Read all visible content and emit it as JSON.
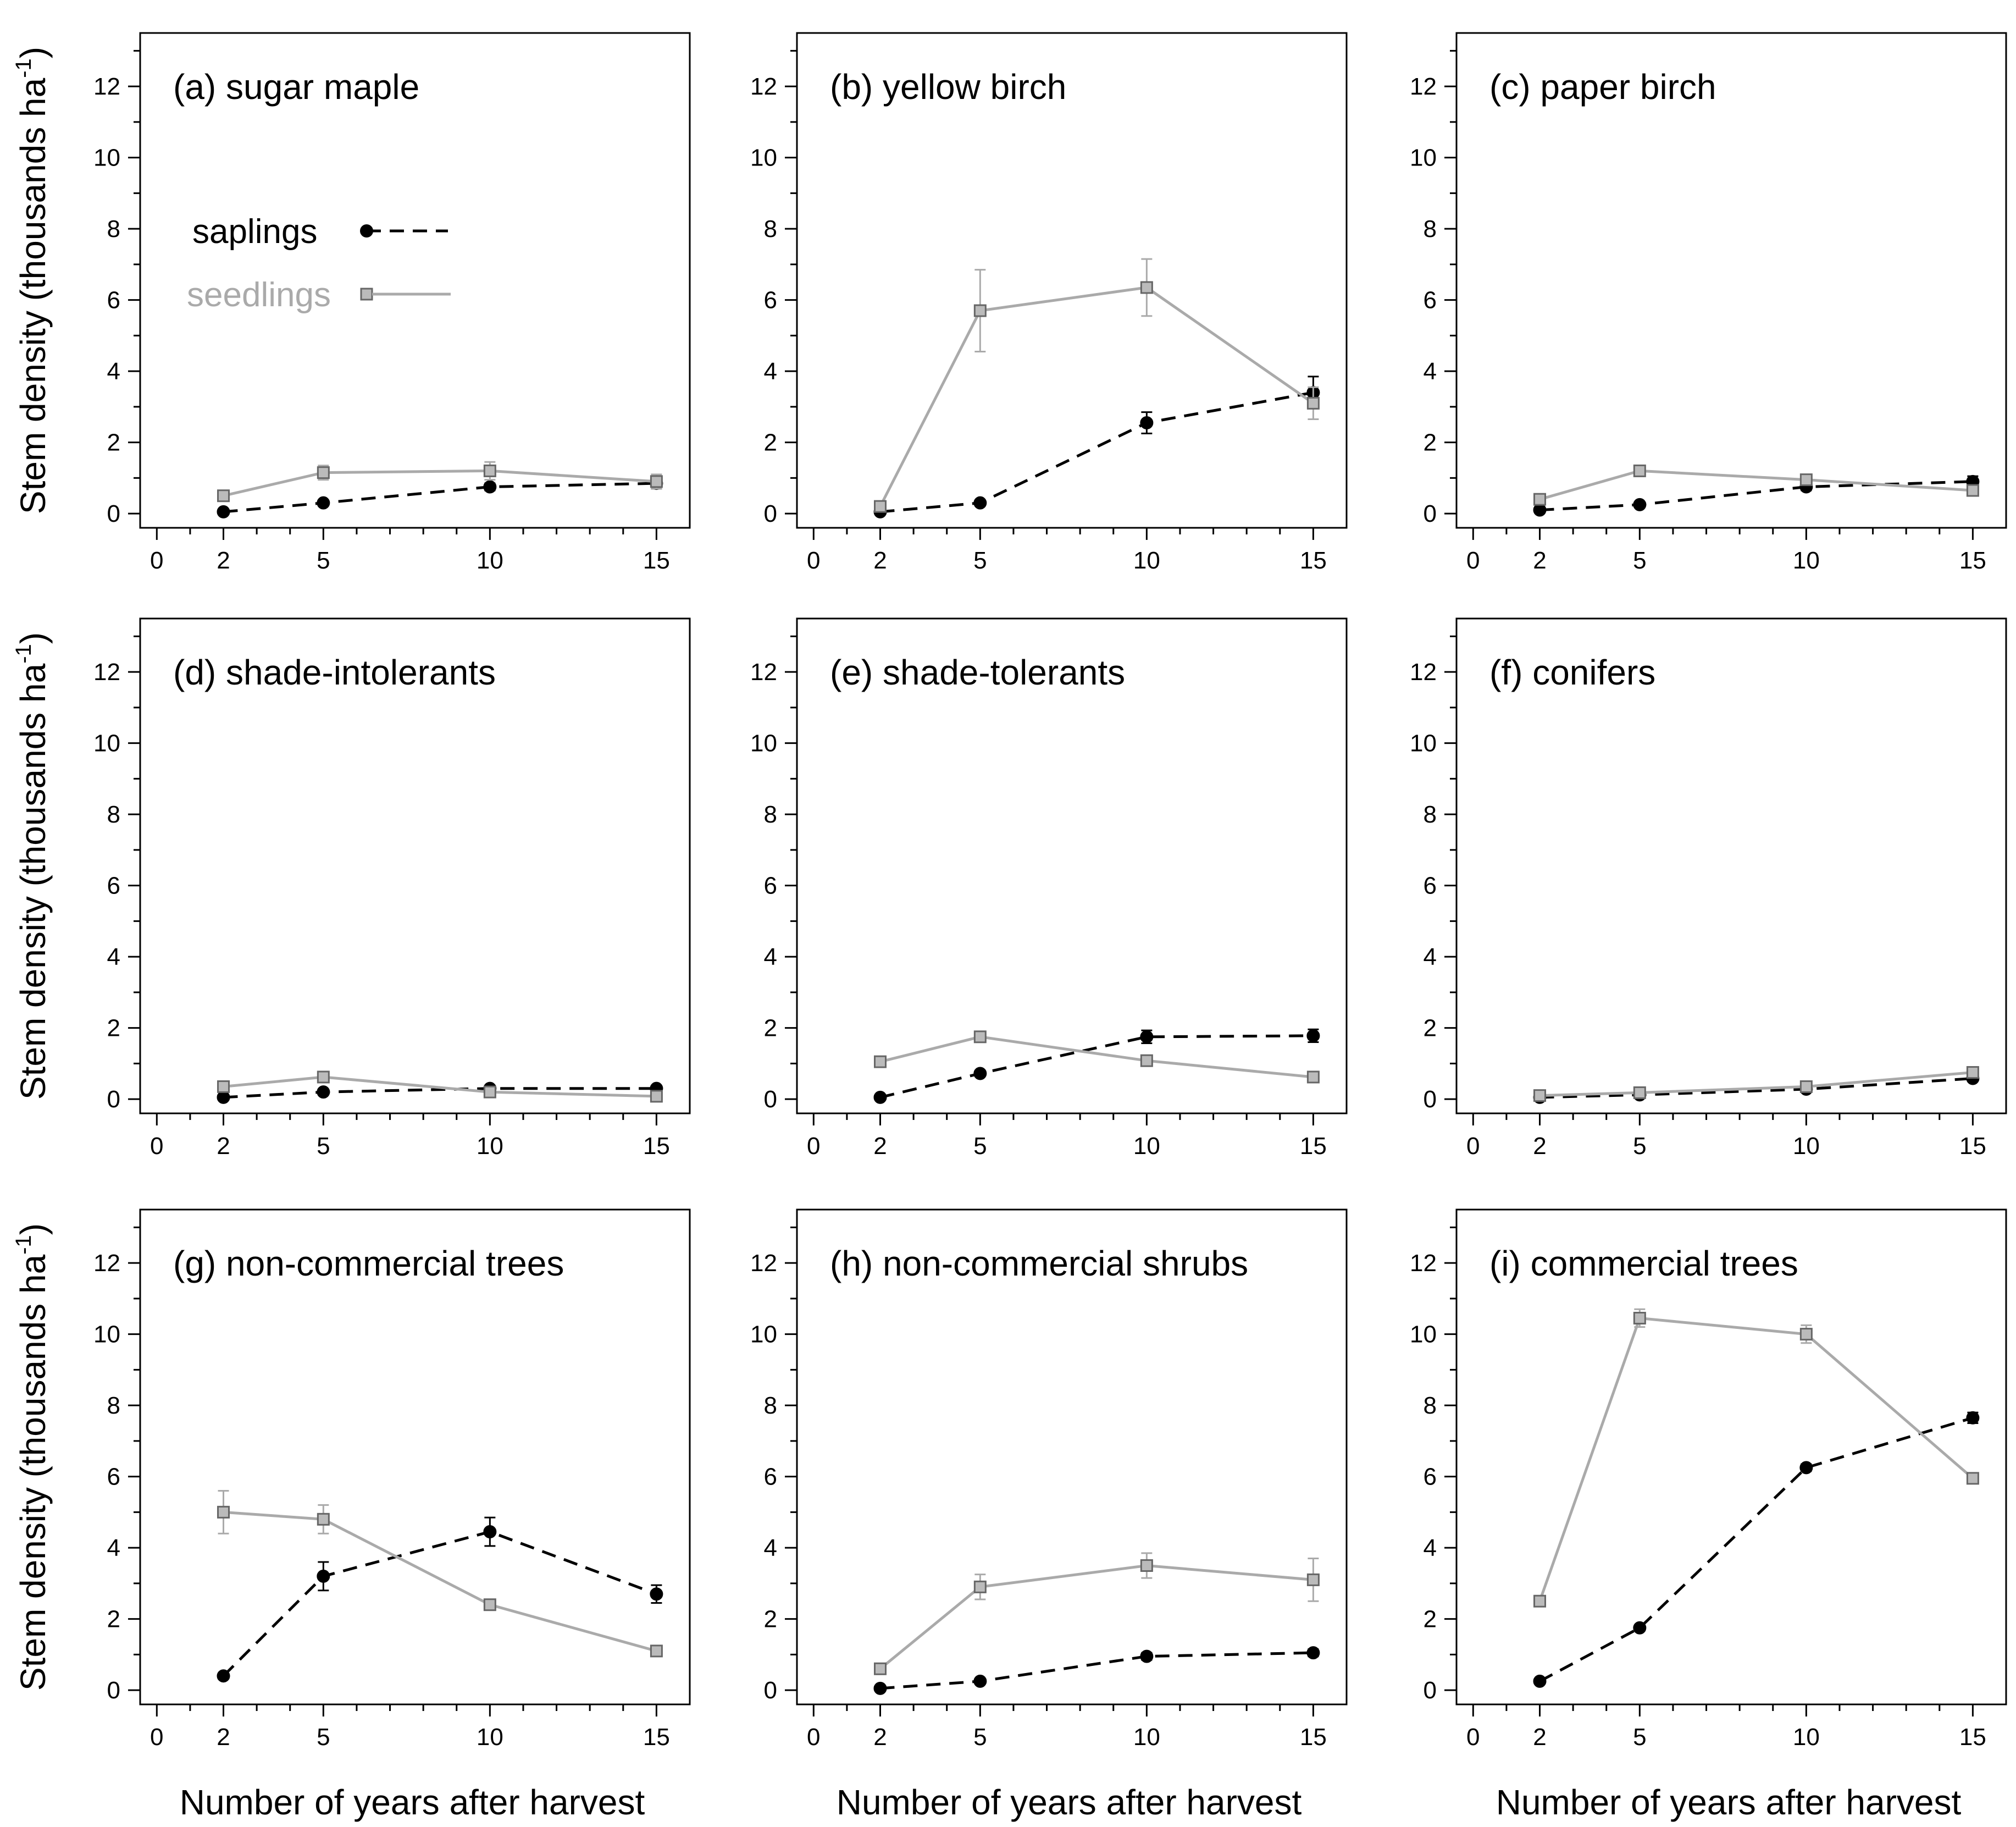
{
  "colors": {
    "saplings": "#000000",
    "seedlings": "#aaaaaa",
    "seedling_marker_fill": "#bbbbbb"
  },
  "labels": {
    "ylabel": "Stem density (thousands ha",
    "ylabel_superscript": "-1",
    "ylabel_close": ")",
    "xlabel": "Number of years after harvest"
  },
  "legend": {
    "saplings": "saplings",
    "seedlings": "seedlings"
  },
  "chart_data": [
    {
      "type": "line",
      "title": "(a) sugar maple",
      "x": [
        2,
        5,
        10,
        15
      ],
      "xticks": [
        0,
        2,
        5,
        10,
        15
      ],
      "yticks": [
        0,
        2,
        4,
        6,
        8,
        10,
        12
      ],
      "xlim": [
        -0.5,
        16
      ],
      "ylim": [
        -0.4,
        13.5
      ],
      "legend": "upper-left",
      "series": [
        {
          "name": "saplings",
          "style": "dashed-circle",
          "values": [
            0.05,
            0.3,
            0.75,
            0.85
          ],
          "err": [
            0.05,
            0.05,
            0.1,
            0.15
          ]
        },
        {
          "name": "seedlings",
          "style": "solid-square",
          "values": [
            0.5,
            1.15,
            1.2,
            0.9
          ],
          "err": [
            0.1,
            0.2,
            0.25,
            0.2
          ]
        }
      ]
    },
    {
      "type": "line",
      "title": "(b) yellow birch",
      "x": [
        2,
        5,
        10,
        15
      ],
      "xticks": [
        0,
        2,
        5,
        10,
        15
      ],
      "yticks": [
        0,
        2,
        4,
        6,
        8,
        10,
        12
      ],
      "xlim": [
        -0.5,
        16
      ],
      "ylim": [
        -0.4,
        13.5
      ],
      "series": [
        {
          "name": "saplings",
          "style": "dashed-circle",
          "values": [
            0.05,
            0.3,
            2.55,
            3.4
          ],
          "err": [
            0.03,
            0.05,
            0.3,
            0.45
          ]
        },
        {
          "name": "seedlings",
          "style": "solid-square",
          "values": [
            0.2,
            5.7,
            6.35,
            3.1
          ],
          "err": [
            0.1,
            1.15,
            0.8,
            0.45
          ]
        }
      ]
    },
    {
      "type": "line",
      "title": "(c) paper birch",
      "x": [
        2,
        5,
        10,
        15
      ],
      "xticks": [
        0,
        2,
        5,
        10,
        15
      ],
      "yticks": [
        0,
        2,
        4,
        6,
        8,
        10,
        12
      ],
      "xlim": [
        -0.5,
        16
      ],
      "ylim": [
        -0.4,
        13.5
      ],
      "series": [
        {
          "name": "saplings",
          "style": "dashed-circle",
          "values": [
            0.1,
            0.25,
            0.75,
            0.9
          ],
          "err": [
            0.03,
            0.05,
            0.1,
            0.15
          ]
        },
        {
          "name": "seedlings",
          "style": "solid-square",
          "values": [
            0.4,
            1.2,
            0.95,
            0.65
          ],
          "err": [
            0.1,
            0.15,
            0.15,
            0.1
          ]
        }
      ]
    },
    {
      "type": "line",
      "title": "(d) shade-intolerants",
      "x": [
        2,
        5,
        10,
        15
      ],
      "xticks": [
        0,
        2,
        5,
        10,
        15
      ],
      "yticks": [
        0,
        2,
        4,
        6,
        8,
        10,
        12
      ],
      "xlim": [
        -0.5,
        16
      ],
      "ylim": [
        -0.4,
        13.5
      ],
      "series": [
        {
          "name": "saplings",
          "style": "dashed-circle",
          "values": [
            0.05,
            0.2,
            0.3,
            0.3
          ],
          "err": [
            0.03,
            0.05,
            0.05,
            0.05
          ]
        },
        {
          "name": "seedlings",
          "style": "solid-square",
          "values": [
            0.35,
            0.62,
            0.2,
            0.08
          ],
          "err": [
            0.1,
            0.1,
            0.05,
            0.03
          ]
        }
      ]
    },
    {
      "type": "line",
      "title": "(e) shade-tolerants",
      "x": [
        2,
        5,
        10,
        15
      ],
      "xticks": [
        0,
        2,
        5,
        10,
        15
      ],
      "yticks": [
        0,
        2,
        4,
        6,
        8,
        10,
        12
      ],
      "xlim": [
        -0.5,
        16
      ],
      "ylim": [
        -0.4,
        13.5
      ],
      "series": [
        {
          "name": "saplings",
          "style": "dashed-circle",
          "values": [
            0.05,
            0.72,
            1.75,
            1.78
          ],
          "err": [
            0.03,
            0.08,
            0.18,
            0.18
          ]
        },
        {
          "name": "seedlings",
          "style": "solid-square",
          "values": [
            1.05,
            1.75,
            1.08,
            0.62
          ],
          "err": [
            0.1,
            0.15,
            0.12,
            0.08
          ]
        }
      ]
    },
    {
      "type": "line",
      "title": "(f) conifers",
      "x": [
        2,
        5,
        10,
        15
      ],
      "xticks": [
        0,
        2,
        5,
        10,
        15
      ],
      "yticks": [
        0,
        2,
        4,
        6,
        8,
        10,
        12
      ],
      "xlim": [
        -0.5,
        16
      ],
      "ylim": [
        -0.4,
        13.5
      ],
      "series": [
        {
          "name": "saplings",
          "style": "dashed-circle",
          "values": [
            0.05,
            0.12,
            0.28,
            0.58
          ],
          "err": [
            0.03,
            0.03,
            0.05,
            0.08
          ]
        },
        {
          "name": "seedlings",
          "style": "solid-square",
          "values": [
            0.1,
            0.18,
            0.35,
            0.75
          ],
          "err": [
            0.08,
            0.08,
            0.08,
            0.1
          ]
        }
      ]
    },
    {
      "type": "line",
      "title": "(g) non-commercial trees",
      "x": [
        2,
        5,
        10,
        15
      ],
      "xticks": [
        0,
        2,
        5,
        10,
        15
      ],
      "yticks": [
        0,
        2,
        4,
        6,
        8,
        10,
        12
      ],
      "xlim": [
        -0.5,
        16
      ],
      "ylim": [
        -0.4,
        13.5
      ],
      "series": [
        {
          "name": "saplings",
          "style": "dashed-circle",
          "values": [
            0.4,
            3.2,
            4.45,
            2.7
          ],
          "err": [
            0.05,
            0.4,
            0.4,
            0.25
          ]
        },
        {
          "name": "seedlings",
          "style": "solid-square",
          "values": [
            5.0,
            4.8,
            2.4,
            1.1
          ],
          "err": [
            0.6,
            0.4,
            0.15,
            0.1
          ]
        }
      ]
    },
    {
      "type": "line",
      "title": "(h) non-commercial shrubs",
      "x": [
        2,
        5,
        10,
        15
      ],
      "xticks": [
        0,
        2,
        5,
        10,
        15
      ],
      "yticks": [
        0,
        2,
        4,
        6,
        8,
        10,
        12
      ],
      "xlim": [
        -0.5,
        16
      ],
      "ylim": [
        -0.4,
        13.5
      ],
      "series": [
        {
          "name": "saplings",
          "style": "dashed-circle",
          "values": [
            0.05,
            0.25,
            0.95,
            1.05
          ],
          "err": [
            0.03,
            0.05,
            0.1,
            0.1
          ]
        },
        {
          "name": "seedlings",
          "style": "solid-square",
          "values": [
            0.6,
            2.9,
            3.5,
            3.1
          ],
          "err": [
            0.1,
            0.35,
            0.35,
            0.6
          ]
        }
      ]
    },
    {
      "type": "line",
      "title": "(i) commercial trees",
      "x": [
        2,
        5,
        10,
        15
      ],
      "xticks": [
        0,
        2,
        5,
        10,
        15
      ],
      "yticks": [
        0,
        2,
        4,
        6,
        8,
        10,
        12
      ],
      "xlim": [
        -0.5,
        16
      ],
      "ylim": [
        -0.4,
        13.5
      ],
      "series": [
        {
          "name": "saplings",
          "style": "dashed-circle",
          "values": [
            0.25,
            1.75,
            6.25,
            7.65
          ],
          "err": [
            0.03,
            0.08,
            0.1,
            0.15
          ]
        },
        {
          "name": "seedlings",
          "style": "solid-square",
          "values": [
            2.5,
            10.45,
            10.0,
            5.95
          ],
          "err": [
            0.1,
            0.25,
            0.25,
            0.1
          ]
        }
      ]
    }
  ]
}
